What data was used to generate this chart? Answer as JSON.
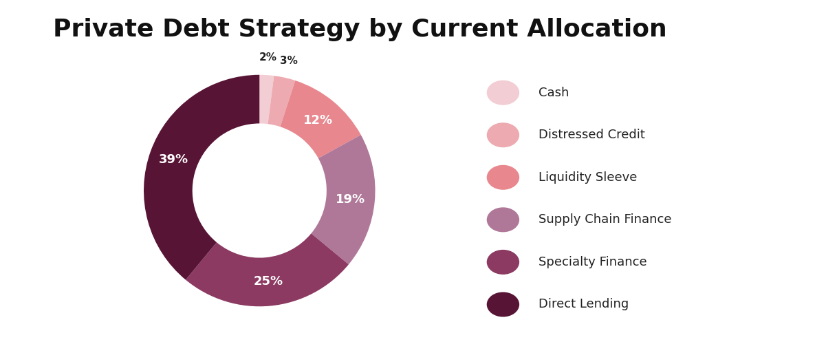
{
  "title": "Private Debt Strategy by Current Allocation",
  "title_fontsize": 26,
  "title_fontweight": "bold",
  "segments": [
    {
      "label": "Cash",
      "value": 2,
      "color": "#f2cdd3"
    },
    {
      "label": "Distressed Credit",
      "value": 3,
      "color": "#edaab0"
    },
    {
      "label": "Liquidity Sleeve",
      "value": 12,
      "color": "#e8878e"
    },
    {
      "label": "Supply Chain Finance",
      "value": 19,
      "color": "#b07898"
    },
    {
      "label": "Specialty Finance",
      "value": 25,
      "color": "#8c3a62"
    },
    {
      "label": "Direct Lending",
      "value": 39,
      "color": "#581435"
    }
  ],
  "pct_label_color_dark": "#222222",
  "pct_label_color_white": "#ffffff",
  "pct_label_fontsize": 13,
  "legend_fontsize": 13,
  "background_color": "#ffffff",
  "donut_width": 0.42,
  "start_angle": 90
}
